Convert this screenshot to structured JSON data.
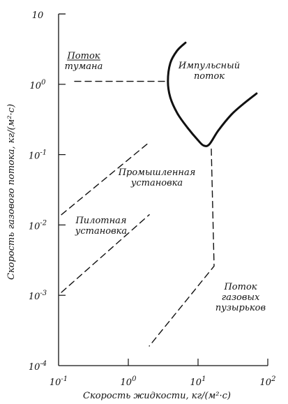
{
  "chart_data": {
    "type": "line",
    "xlabel": "Скорость жидкости, кг/(м²·с)",
    "ylabel": "Скорость газового потока, кг/(м²·с)",
    "x_scale": "log",
    "y_scale": "log",
    "xlim": [
      0.1,
      100
    ],
    "ylim": [
      0.0001,
      10
    ],
    "x_ticks": [
      {
        "value": 0.1,
        "base": "10",
        "exp": "-1"
      },
      {
        "value": 1,
        "base": "10",
        "exp": "0"
      },
      {
        "value": 10,
        "base": "10",
        "exp": "1"
      },
      {
        "value": 100,
        "base": "10",
        "exp": "2"
      }
    ],
    "y_ticks": [
      {
        "value": 0.0001,
        "base": "10",
        "exp": "-4"
      },
      {
        "value": 0.001,
        "base": "10",
        "exp": "-3"
      },
      {
        "value": 0.01,
        "base": "10",
        "exp": "-2"
      },
      {
        "value": 0.1,
        "base": "10",
        "exp": "-1"
      },
      {
        "value": 1,
        "base": "10",
        "exp": "0"
      },
      {
        "value": 10,
        "base": "10",
        "exp": ""
      }
    ],
    "series": [
      {
        "key": "pulse-boundary",
        "style": "solid",
        "points": [
          [
            6.6,
            3.9
          ],
          [
            5.0,
            3.0
          ],
          [
            4.0,
            2.0
          ],
          [
            3.7,
            1.1
          ],
          [
            4.0,
            0.65
          ],
          [
            5.1,
            0.38
          ],
          [
            7.1,
            0.24
          ],
          [
            10.0,
            0.16
          ],
          [
            12.0,
            0.135
          ],
          [
            14.5,
            0.14
          ],
          [
            19.5,
            0.22
          ],
          [
            30.0,
            0.37
          ],
          [
            45.0,
            0.53
          ],
          [
            69.0,
            0.74
          ]
        ]
      },
      {
        "key": "mist-boundary",
        "style": "dashed",
        "points": [
          [
            0.17,
            1.1
          ],
          [
            3.7,
            1.1
          ]
        ]
      },
      {
        "key": "bubble-boundary",
        "style": "dashed",
        "points": [
          [
            15.5,
            0.12
          ],
          [
            17.0,
            0.0026
          ],
          [
            2.0,
            0.00019
          ]
        ]
      },
      {
        "key": "industrial-line",
        "style": "dashed",
        "points": [
          [
            0.11,
            0.014
          ],
          [
            2.0,
            0.15
          ]
        ]
      },
      {
        "key": "pilot-line",
        "style": "dashed",
        "points": [
          [
            0.11,
            0.0011
          ],
          [
            2.0,
            0.014
          ]
        ]
      }
    ],
    "annotations": [
      {
        "key": "mist",
        "lines": [
          "Поток",
          "тумана"
        ],
        "underline": true
      },
      {
        "key": "pulse",
        "lines": [
          "Импульсный",
          "поток"
        ]
      },
      {
        "key": "industrial",
        "lines": [
          "Промышленная",
          "установка"
        ]
      },
      {
        "key": "pilot",
        "lines": [
          "Пилотная",
          "установка"
        ]
      },
      {
        "key": "bubble",
        "lines": [
          "Поток",
          "газовых",
          "пузырьков"
        ]
      }
    ],
    "grid": false
  }
}
